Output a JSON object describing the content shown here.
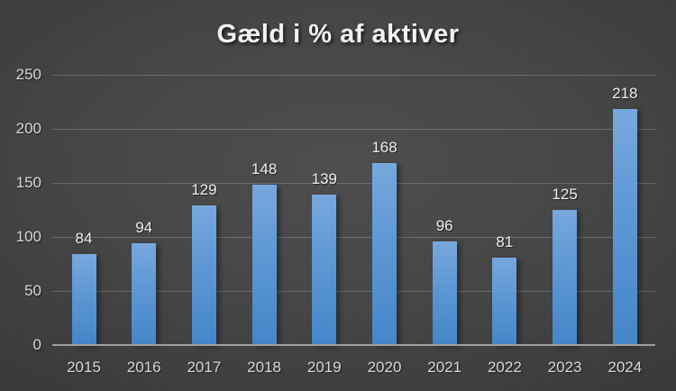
{
  "chart_data": {
    "type": "bar",
    "title": "Gæld i % af aktiver",
    "categories": [
      "2015",
      "2016",
      "2017",
      "2018",
      "2019",
      "2020",
      "2021",
      "2022",
      "2023",
      "2024"
    ],
    "values": [
      84,
      94,
      129,
      148,
      139,
      168,
      96,
      81,
      125,
      218
    ],
    "data_labels": [
      "84",
      "94",
      "129",
      "148",
      "139",
      "168",
      "96",
      "81",
      "125",
      "218"
    ],
    "xlabel": "",
    "ylabel": "",
    "ylim": [
      0,
      250
    ],
    "yticks": [
      0,
      50,
      100,
      150,
      200,
      250
    ],
    "ytick_labels": [
      "0",
      "50",
      "100",
      "150",
      "200",
      "250"
    ],
    "grid": true,
    "legend": "none",
    "colors": {
      "bar_top": "#77a8dd",
      "bar_bottom": "#4486c8",
      "background_center": "#4e4e4e",
      "background_edge": "#1f1f1f",
      "gridline": "#5c5c5c",
      "axis_line": "#a0a0a0",
      "tick_text": "#d8d8d8",
      "label_text": "#efefef",
      "title_text": "#f2f2f2"
    }
  }
}
